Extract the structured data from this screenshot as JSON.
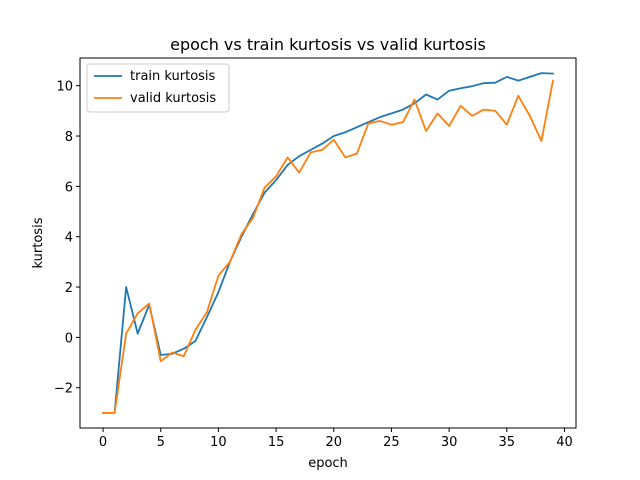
{
  "chart_data": {
    "type": "line",
    "title": "epoch vs train kurtosis vs valid kurtosis",
    "xlabel": "epoch",
    "ylabel": "kurtosis",
    "xlim": [
      -2,
      41
    ],
    "ylim": [
      -3.6,
      11.1
    ],
    "xticks": [
      0,
      5,
      10,
      15,
      20,
      25,
      30,
      35,
      40
    ],
    "yticks": [
      -2,
      0,
      2,
      4,
      6,
      8,
      10
    ],
    "grid": false,
    "legend_position": "top-left",
    "x": [
      0,
      1,
      2,
      3,
      4,
      5,
      6,
      7,
      8,
      9,
      10,
      11,
      12,
      13,
      14,
      15,
      16,
      17,
      18,
      19,
      20,
      21,
      22,
      23,
      24,
      25,
      26,
      27,
      28,
      29,
      30,
      31,
      32,
      33,
      34,
      35,
      36,
      37,
      38,
      39
    ],
    "series": [
      {
        "name": "train kurtosis",
        "color": "#1f77b4",
        "values": [
          -3.0,
          -3.0,
          2.0,
          0.15,
          1.3,
          -0.7,
          -0.65,
          -0.45,
          -0.15,
          0.8,
          1.8,
          3.0,
          4.0,
          4.9,
          5.75,
          6.25,
          6.85,
          7.2,
          7.45,
          7.7,
          8.0,
          8.15,
          8.35,
          8.55,
          8.75,
          8.9,
          9.05,
          9.3,
          9.65,
          9.45,
          9.8,
          9.9,
          9.98,
          10.1,
          10.12,
          10.35,
          10.2,
          10.35,
          10.5,
          10.48
        ]
      },
      {
        "name": "valid kurtosis",
        "color": "#ff7f0e",
        "values": [
          -3.0,
          -3.0,
          0.15,
          0.95,
          1.35,
          -0.95,
          -0.6,
          -0.75,
          0.3,
          1.0,
          2.45,
          3.0,
          4.1,
          4.75,
          5.95,
          6.4,
          7.15,
          6.55,
          7.35,
          7.45,
          7.85,
          7.15,
          7.3,
          8.5,
          8.6,
          8.45,
          8.55,
          9.45,
          8.2,
          8.9,
          8.4,
          9.2,
          8.8,
          9.05,
          9.0,
          8.45,
          9.6,
          8.8,
          7.8,
          10.2
        ]
      }
    ]
  }
}
